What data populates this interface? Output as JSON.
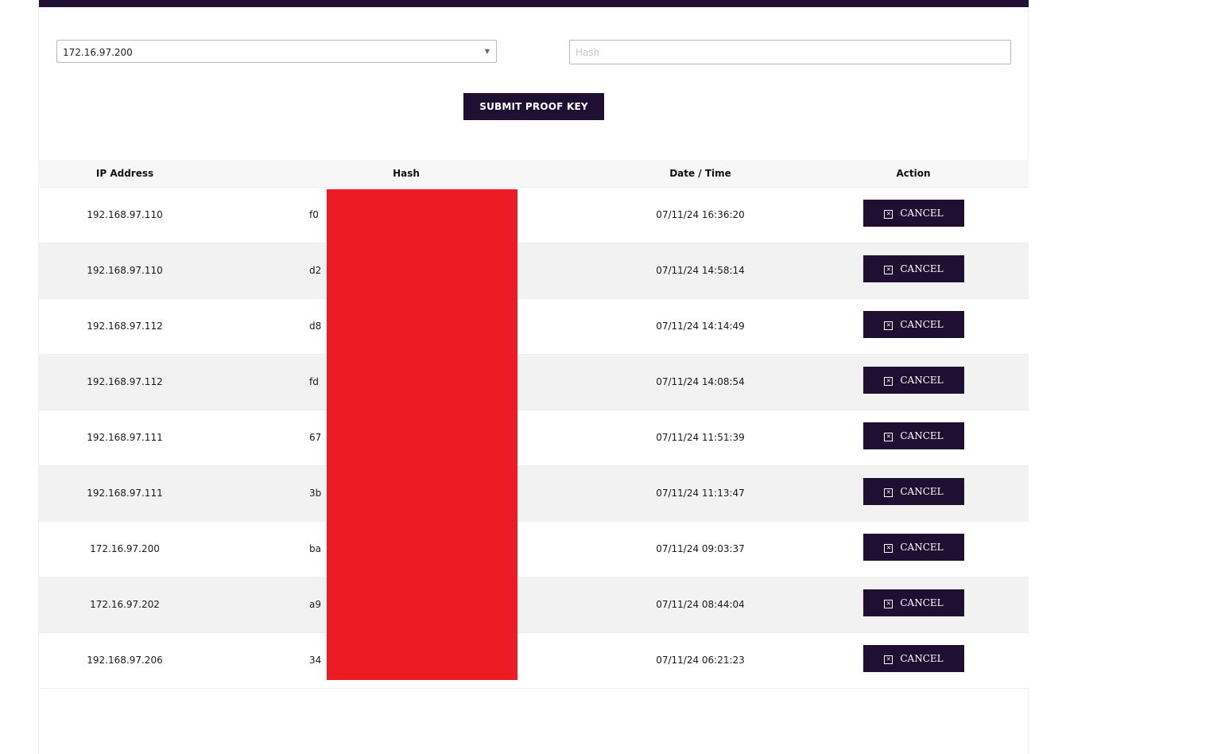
{
  "form": {
    "selected_ip": "172.16.97.200",
    "hash_placeholder": "Hash",
    "hash_value": "",
    "submit_label": "SUBMIT PROOF KEY"
  },
  "table": {
    "headers": {
      "ip": "IP Address",
      "hash": "Hash",
      "datetime": "Date / Time",
      "action": "Action"
    },
    "rows": [
      {
        "ip": "192.168.97.110",
        "hash": "f0",
        "datetime": "07/11/24 16:36:20",
        "action": "CANCEL"
      },
      {
        "ip": "192.168.97.110",
        "hash": "d2",
        "datetime": "07/11/24 14:58:14",
        "action": "CANCEL"
      },
      {
        "ip": "192.168.97.112",
        "hash": "d8",
        "datetime": "07/11/24 14:14:49",
        "action": "CANCEL"
      },
      {
        "ip": "192.168.97.112",
        "hash": "fd",
        "datetime": "07/11/24 14:08:54",
        "action": "CANCEL"
      },
      {
        "ip": "192.168.97.111",
        "hash": "67",
        "datetime": "07/11/24 11:51:39",
        "action": "CANCEL"
      },
      {
        "ip": "192.168.97.111",
        "hash": "3b",
        "datetime": "07/11/24 11:13:47",
        "action": "CANCEL"
      },
      {
        "ip": "172.16.97.200",
        "hash": "ba",
        "datetime": "07/11/24 09:03:37",
        "action": "CANCEL"
      },
      {
        "ip": "172.16.97.202",
        "hash": "a9",
        "datetime": "07/11/24 08:44:04",
        "action": "CANCEL"
      },
      {
        "ip": "192.168.97.206",
        "hash": "34",
        "datetime": "07/11/24 06:21:23",
        "action": "CANCEL"
      }
    ]
  },
  "colors": {
    "primary": "#1e0f33",
    "redaction": "#ed1c24"
  },
  "icons": {
    "select_caret": "caret-down-icon",
    "cancel": "close-square-icon"
  }
}
